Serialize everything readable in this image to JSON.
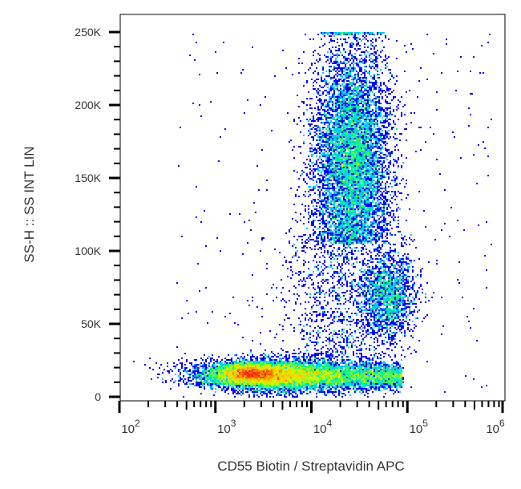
{
  "chart_data": {
    "type": "scatter",
    "subtype": "density-dot-plot",
    "xlabel": "CD55 Biotin / Streptavidin APC",
    "ylabel": "SS-H :: SS INT LIN",
    "x_scale": "log",
    "xlim": [
      100,
      1000000
    ],
    "ylim": [
      -3000,
      262000
    ],
    "x_ticks": [
      {
        "value": 100,
        "base": "10",
        "exp": "2"
      },
      {
        "value": 1000,
        "base": "10",
        "exp": "3"
      },
      {
        "value": 10000,
        "base": "10",
        "exp": "4"
      },
      {
        "value": 100000,
        "base": "10",
        "exp": "5"
      },
      {
        "value": 1000000,
        "base": "10",
        "exp": "6"
      }
    ],
    "y_ticks": [
      {
        "value": 0,
        "label": "0"
      },
      {
        "value": 50000,
        "label": "50K"
      },
      {
        "value": 100000,
        "label": "100K"
      },
      {
        "value": 150000,
        "label": "150K"
      },
      {
        "value": 200000,
        "label": "200K"
      },
      {
        "value": 250000,
        "label": "250K"
      }
    ],
    "grid": false,
    "colormap": [
      "#0000ff",
      "#00c8ff",
      "#00ff80",
      "#c8ff00",
      "#ffc800",
      "#ff0000"
    ],
    "populations": [
      {
        "x_center": 2200,
        "y_center": 16000,
        "density": "highest"
      },
      {
        "x_center": 15000,
        "y_center": 14000,
        "density": "high"
      },
      {
        "x_center": 25000,
        "y_center": 165000,
        "density": "medium"
      },
      {
        "x_center": 63000,
        "y_center": 70000,
        "density": "medium-low"
      }
    ]
  }
}
